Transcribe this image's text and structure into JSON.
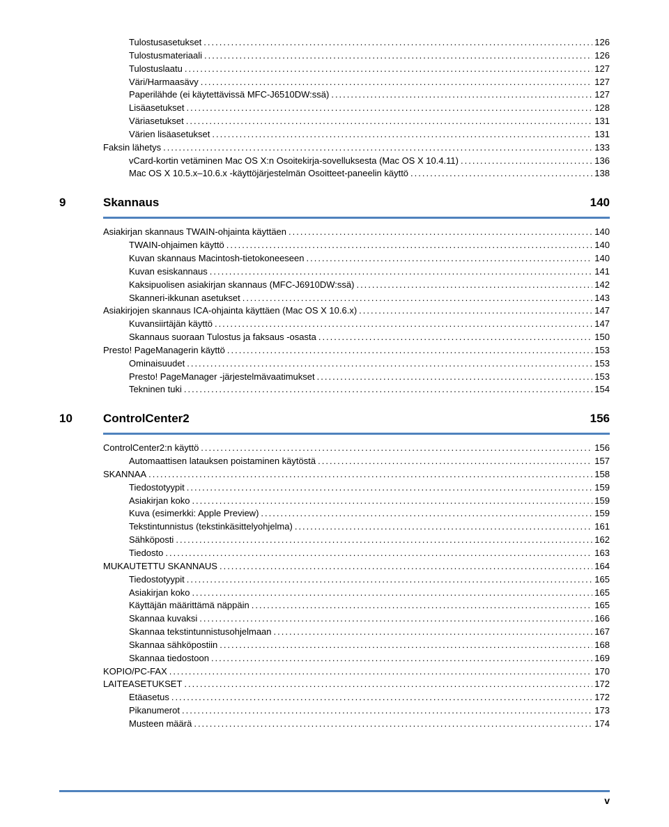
{
  "block1": [
    {
      "indent": 2,
      "label": "Tulostusasetukset",
      "page": "126"
    },
    {
      "indent": 2,
      "label": "Tulostusmateriaali",
      "page": "126"
    },
    {
      "indent": 2,
      "label": "Tulostuslaatu",
      "page": "127"
    },
    {
      "indent": 2,
      "label": "Väri/Harmaasävy",
      "page": "127"
    },
    {
      "indent": 2,
      "label": "Paperilähde (ei käytettävissä MFC-J6510DW:ssä)",
      "page": "127"
    },
    {
      "indent": 2,
      "label": "Lisäasetukset",
      "page": "128"
    },
    {
      "indent": 2,
      "label": "Väriasetukset",
      "page": "131"
    },
    {
      "indent": 2,
      "label": "Värien lisäasetukset",
      "page": "131"
    },
    {
      "indent": 1,
      "label": "Faksin lähetys",
      "page": "133"
    },
    {
      "indent": 2,
      "label": "vCard-kortin vetäminen Mac OS X:n Osoitekirja-sovelluksesta (Mac OS X 10.4.11)",
      "page": "136"
    },
    {
      "indent": 2,
      "label": "Mac OS X 10.5.x–10.6.x -käyttöjärjestelmän Osoitteet-paneelin käyttö",
      "page": "138"
    }
  ],
  "section9": {
    "num": "9",
    "title": "Skannaus",
    "page": "140"
  },
  "block2": [
    {
      "indent": 1,
      "label": "Asiakirjan skannaus TWAIN-ohjainta käyttäen",
      "page": "140"
    },
    {
      "indent": 2,
      "label": "TWAIN-ohjaimen käyttö",
      "page": "140"
    },
    {
      "indent": 2,
      "label": "Kuvan skannaus Macintosh-tietokoneeseen",
      "page": "140"
    },
    {
      "indent": 2,
      "label": "Kuvan esiskannaus",
      "page": "141"
    },
    {
      "indent": 2,
      "label": "Kaksipuolisen asiakirjan skannaus (MFC-J6910DW:ssä)",
      "page": "142"
    },
    {
      "indent": 2,
      "label": "Skanneri-ikkunan asetukset",
      "page": "143"
    },
    {
      "indent": 1,
      "label": "Asiakirjojen skannaus ICA-ohjainta käyttäen (Mac OS X 10.6.x)",
      "page": "147"
    },
    {
      "indent": 2,
      "label": "Kuvansiirtäjän käyttö",
      "page": "147"
    },
    {
      "indent": 2,
      "label": "Skannaus suoraan Tulostus ja faksaus -osasta",
      "page": "150"
    },
    {
      "indent": 1,
      "label": "Presto! PageManagerin käyttö",
      "page": "153"
    },
    {
      "indent": 2,
      "label": "Ominaisuudet",
      "page": "153"
    },
    {
      "indent": 2,
      "label": "Presto! PageManager -järjestelmävaatimukset",
      "page": "153"
    },
    {
      "indent": 2,
      "label": "Tekninen tuki",
      "page": "154"
    }
  ],
  "section10": {
    "num": "10",
    "title": "ControlCenter2",
    "page": "156"
  },
  "block3": [
    {
      "indent": 1,
      "label": "ControlCenter2:n käyttö",
      "page": "156"
    },
    {
      "indent": 2,
      "label": "Automaattisen latauksen poistaminen käytöstä",
      "page": "157"
    },
    {
      "indent": 1,
      "label": "SKANNAA",
      "page": "158"
    },
    {
      "indent": 2,
      "label": "Tiedostotyypit",
      "page": "159"
    },
    {
      "indent": 2,
      "label": "Asiakirjan koko",
      "page": "159"
    },
    {
      "indent": 2,
      "label": "Kuva (esimerkki: Apple Preview)",
      "page": "159"
    },
    {
      "indent": 2,
      "label": "Tekstintunnistus (tekstinkäsittelyohjelma)",
      "page": "161"
    },
    {
      "indent": 2,
      "label": "Sähköposti",
      "page": "162"
    },
    {
      "indent": 2,
      "label": "Tiedosto",
      "page": "163"
    },
    {
      "indent": 1,
      "label": "MUKAUTETTU SKANNAUS",
      "page": "164"
    },
    {
      "indent": 2,
      "label": "Tiedostotyypit",
      "page": "165"
    },
    {
      "indent": 2,
      "label": "Asiakirjan koko",
      "page": "165"
    },
    {
      "indent": 2,
      "label": "Käyttäjän määrittämä näppäin",
      "page": "165"
    },
    {
      "indent": 2,
      "label": "Skannaa kuvaksi",
      "page": "166"
    },
    {
      "indent": 2,
      "label": "Skannaa tekstintunnistusohjelmaan",
      "page": "167"
    },
    {
      "indent": 2,
      "label": "Skannaa sähköpostiin",
      "page": "168"
    },
    {
      "indent": 2,
      "label": "Skannaa tiedostoon",
      "page": "169"
    },
    {
      "indent": 1,
      "label": "KOPIO/PC-FAX",
      "page": "170"
    },
    {
      "indent": 1,
      "label": "LAITEASETUKSET",
      "page": "172"
    },
    {
      "indent": 2,
      "label": "Etäasetus",
      "page": "172"
    },
    {
      "indent": 2,
      "label": "Pikanumerot",
      "page": "173"
    },
    {
      "indent": 2,
      "label": "Musteen määrä",
      "page": "174"
    }
  ],
  "footer": "v"
}
